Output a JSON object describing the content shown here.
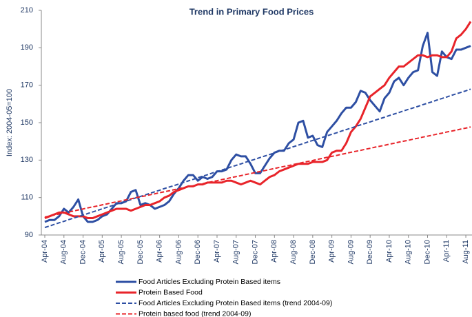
{
  "chart_data": {
    "type": "line",
    "title": "Trend in Primary Food Prices",
    "y_label": "Index: 2004-05=100",
    "categories": [
      "Apr-04",
      null,
      null,
      null,
      "Aug-04",
      null,
      null,
      null,
      "Dec-04",
      null,
      null,
      null,
      "Apr-05",
      null,
      null,
      null,
      "Aug-05",
      null,
      null,
      null,
      "Dec-05",
      null,
      null,
      null,
      "Apr-06",
      null,
      null,
      null,
      "Aug-06",
      null,
      null,
      null,
      "Dec-06",
      null,
      null,
      null,
      "Apr-07",
      null,
      null,
      null,
      "Aug-07",
      null,
      null,
      null,
      "Dec-07",
      null,
      null,
      null,
      "Apr-08",
      null,
      null,
      null,
      "Aug-08",
      null,
      null,
      null,
      "Dec-08",
      null,
      null,
      null,
      "Apr-09",
      null,
      null,
      null,
      "Aug-09",
      null,
      null,
      null,
      "Dec-09",
      null,
      null,
      null,
      "Apr-10",
      null,
      null,
      null,
      "Aug-10",
      null,
      null,
      null,
      "Dec-10",
      null,
      null,
      null,
      "Apr-11",
      null,
      null,
      null,
      "Aug-11",
      null
    ],
    "series": [
      {
        "name": "Food Articles Excluding Protein Based items",
        "color": "#2e4fa3",
        "line_style": "solid",
        "values": [
          97,
          98,
          98,
          100,
          104,
          102,
          105,
          109,
          100,
          97,
          97,
          98,
          100,
          101,
          104,
          107,
          107,
          108,
          113,
          114,
          106,
          107,
          106,
          104,
          105,
          106,
          108,
          112,
          115,
          119,
          122,
          122,
          119,
          121,
          120,
          121,
          124,
          124,
          125,
          130,
          133,
          132,
          132,
          128,
          123,
          123,
          127,
          131,
          134,
          135,
          135,
          139,
          141,
          150,
          151,
          142,
          143,
          138,
          137,
          145,
          148,
          151,
          155,
          158,
          158,
          161,
          167,
          166,
          162,
          159,
          156,
          163,
          166,
          172,
          174,
          170,
          174,
          177,
          178,
          191,
          198,
          177,
          175,
          188,
          185,
          184,
          189,
          189,
          190,
          191
        ]
      },
      {
        "name": "Protein Based Food",
        "color": "#e8242a",
        "line_style": "solid",
        "values": [
          99,
          100,
          101,
          102,
          102,
          101,
          100,
          100,
          100,
          99,
          99,
          100,
          101,
          102,
          103,
          104,
          104,
          104,
          103,
          104,
          105,
          106,
          106,
          107,
          108,
          110,
          111,
          113,
          114,
          115,
          116,
          116,
          117,
          117,
          118,
          118,
          118,
          118,
          119,
          119,
          118,
          117,
          118,
          119,
          118,
          117,
          119,
          121,
          122,
          124,
          125,
          126,
          127,
          128,
          128,
          128,
          129,
          129,
          129,
          130,
          134,
          135,
          135,
          139,
          145,
          148,
          152,
          158,
          164,
          166,
          168,
          170,
          174,
          177,
          180,
          180,
          182,
          184,
          186,
          186,
          185,
          186,
          186,
          185,
          185,
          188,
          195,
          197,
          200,
          204
        ]
      },
      {
        "name": "Food Articles Excluding Protein Based items (trend 2004-09)",
        "color": "#2e4fa3",
        "line_style": "dashed",
        "values": [
          94.0,
          94.8,
          95.7,
          96.5,
          97.3,
          98.2,
          99.0,
          99.8,
          100.6,
          101.5,
          102.3,
          103.1,
          104.0,
          104.8,
          105.6,
          106.5,
          107.3,
          108.1,
          108.9,
          109.8,
          110.6,
          111.4,
          112.3,
          113.1,
          113.9,
          114.8,
          115.6,
          116.4,
          117.2,
          118.1,
          118.9,
          119.7,
          120.6,
          121.4,
          122.2,
          123.1,
          123.9,
          124.7,
          125.5,
          126.4,
          127.2,
          128.0,
          128.9,
          129.7,
          130.5,
          131.4,
          132.2,
          133.0,
          133.8,
          134.7,
          135.5,
          136.3,
          137.2,
          138.0,
          138.8,
          139.7,
          140.5,
          141.3,
          142.1,
          143.0,
          143.8,
          144.6,
          145.5,
          146.3,
          147.1,
          148.0,
          148.8,
          149.6,
          150.4,
          151.3,
          152.1,
          152.9,
          153.8,
          154.6,
          155.4,
          156.3,
          157.1,
          157.9,
          158.7,
          159.6,
          160.4,
          161.2,
          162.1,
          162.9,
          163.7,
          164.6,
          165.4,
          166.2,
          167.0,
          167.9
        ]
      },
      {
        "name": "Protein based food (trend 2004-09)",
        "color": "#e8242a",
        "line_style": "dashed",
        "values": [
          99.6,
          100.1,
          100.7,
          101.2,
          101.8,
          102.3,
          102.8,
          103.4,
          103.9,
          104.5,
          105.0,
          105.5,
          106.1,
          106.6,
          107.2,
          107.7,
          108.2,
          108.8,
          109.3,
          109.9,
          110.4,
          110.9,
          111.5,
          112.0,
          112.6,
          113.1,
          113.6,
          114.2,
          114.7,
          115.3,
          115.8,
          116.3,
          116.9,
          117.4,
          118.0,
          118.5,
          119.0,
          119.6,
          120.1,
          120.7,
          121.2,
          121.7,
          122.3,
          122.8,
          123.4,
          123.9,
          124.4,
          125.0,
          125.5,
          126.1,
          126.6,
          127.1,
          127.7,
          128.2,
          128.8,
          129.3,
          129.8,
          130.4,
          130.9,
          131.5,
          132.0,
          132.5,
          133.1,
          133.6,
          134.2,
          134.7,
          135.2,
          135.8,
          136.3,
          136.9,
          137.4,
          137.9,
          138.5,
          139.0,
          139.6,
          140.1,
          140.6,
          141.2,
          141.7,
          142.3,
          142.8,
          143.3,
          143.9,
          144.4,
          145.0,
          145.5,
          146.0,
          146.6,
          147.1,
          147.7
        ]
      }
    ],
    "ylim": [
      90,
      210
    ],
    "yticks": [
      90,
      110,
      130,
      150,
      170,
      190,
      210
    ],
    "grid": false,
    "legend": "bottom"
  }
}
